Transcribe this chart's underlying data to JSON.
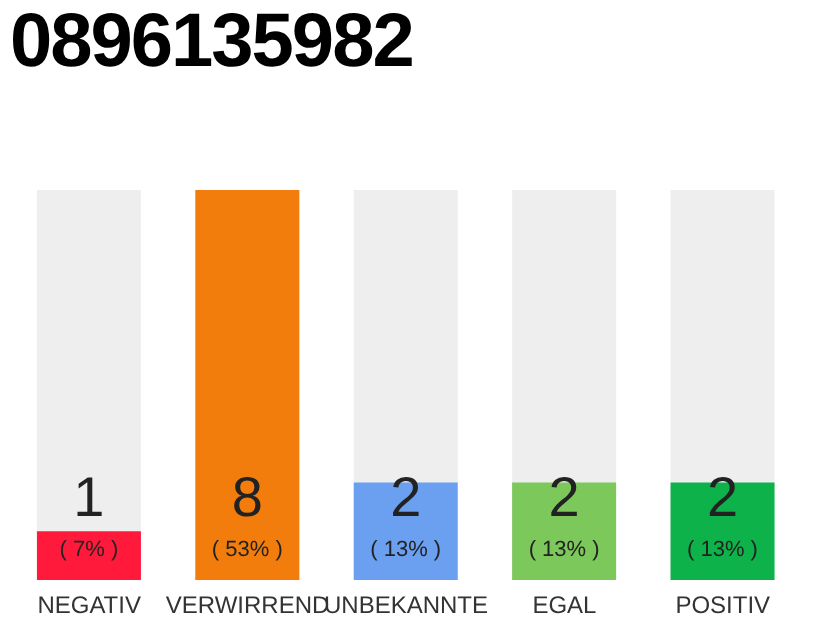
{
  "chart_data": {
    "type": "bar",
    "title": "0896135982",
    "categories": [
      "NEGATIV",
      "VERWIRREND",
      "UNBEKANNTE",
      "EGAL",
      "POSITIV"
    ],
    "values": [
      1,
      8,
      2,
      2,
      2
    ],
    "colors": [
      "#ff1a3c",
      "#f27d0c",
      "#6b9ff0",
      "#7dc85a",
      "#0db34a"
    ],
    "data_labels": true,
    "annotations": [
      "( 7% )",
      "( 53% )",
      "( 13% )",
      "( 13% )",
      "( 13% )"
    ]
  }
}
